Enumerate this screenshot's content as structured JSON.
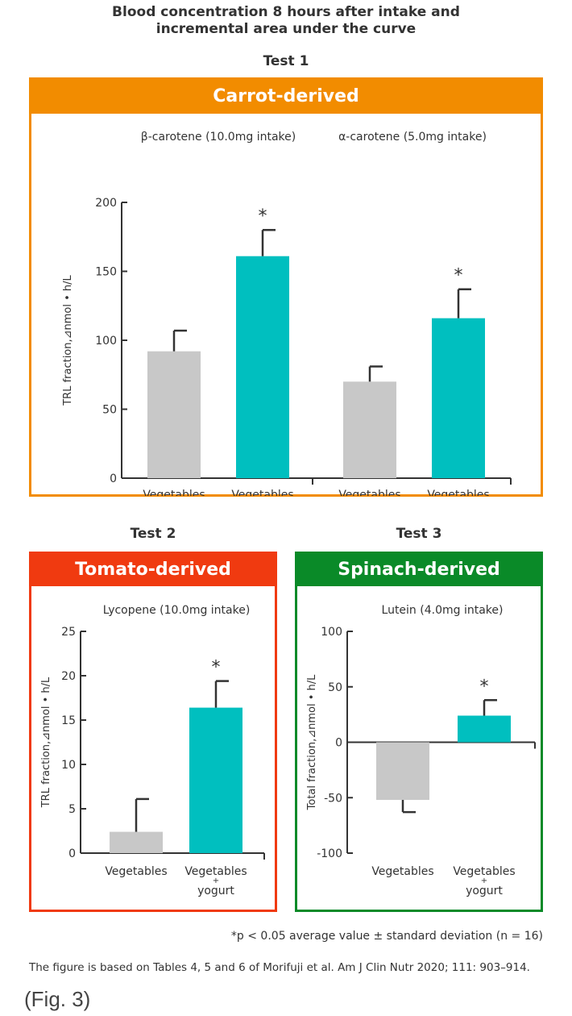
{
  "header": {
    "title_line1": "Blood concentration 8 hours after intake and",
    "title_line2": "incremental area under the curve"
  },
  "colors": {
    "vegetables": "#c8c8c8",
    "vegetables_yogurt": "#00bfbf",
    "carrot_panel": "#f28c00",
    "tomato_panel": "#f03a10",
    "spinach_panel": "#0a8a28"
  },
  "footnote": "*p < 0.05 average value ± standard deviation (n = 16)",
  "source": "The figure is based on Tables 4, 5 and 6 of Morifuji et al. Am J Clin Nutr 2020; 111: 903–914.",
  "figure_label": "(Fig. 3)",
  "chart_data": [
    {
      "id": "test1",
      "test": "Test 1",
      "panel_title": "Carrot-derived",
      "type": "bar",
      "ylabel": "TRL fraction,⊿nmol • h/L",
      "ylim": [
        0,
        200
      ],
      "yticks": [
        0,
        50,
        100,
        150,
        200
      ],
      "groups": [
        {
          "title": "β-carotene (10.0mg intake)",
          "bars": [
            {
              "category": "Vegetables",
              "value": 92,
              "error": 15,
              "significant": false
            },
            {
              "category": "Vegetables + yogurt",
              "value": 161,
              "error": 19,
              "significant": true
            }
          ]
        },
        {
          "title": "α-carotene (5.0mg intake)",
          "bars": [
            {
              "category": "Vegetables",
              "value": 70,
              "error": 11,
              "significant": false
            },
            {
              "category": "Vegetables + yogurt",
              "value": 116,
              "error": 21,
              "significant": true
            }
          ]
        }
      ]
    },
    {
      "id": "test2",
      "test": "Test 2",
      "panel_title": "Tomato-derived",
      "type": "bar",
      "ylabel": "TRL fraction,⊿nmol • h/L",
      "ylim": [
        0,
        25
      ],
      "yticks": [
        0,
        5,
        10,
        15,
        20,
        25
      ],
      "groups": [
        {
          "title": "Lycopene (10.0mg intake)",
          "bars": [
            {
              "category": "Vegetables",
              "value": 2.4,
              "error": 3.7,
              "significant": false
            },
            {
              "category": "Vegetables + yogurt",
              "value": 16.4,
              "error": 3.0,
              "significant": true
            }
          ]
        }
      ]
    },
    {
      "id": "test3",
      "test": "Test 3",
      "panel_title": "Spinach-derived",
      "type": "bar",
      "ylabel": "Total fraction,⊿nmol • h/L",
      "ylim": [
        -100,
        100
      ],
      "yticks": [
        -100,
        -50,
        0,
        50,
        100
      ],
      "groups": [
        {
          "title": "Lutein (4.0mg intake)",
          "bars": [
            {
              "category": "Vegetables",
              "value": -52,
              "error": 11,
              "significant": false
            },
            {
              "category": "Vegetables + yogurt",
              "value": 24,
              "error": 14,
              "significant": true
            }
          ]
        }
      ]
    }
  ]
}
